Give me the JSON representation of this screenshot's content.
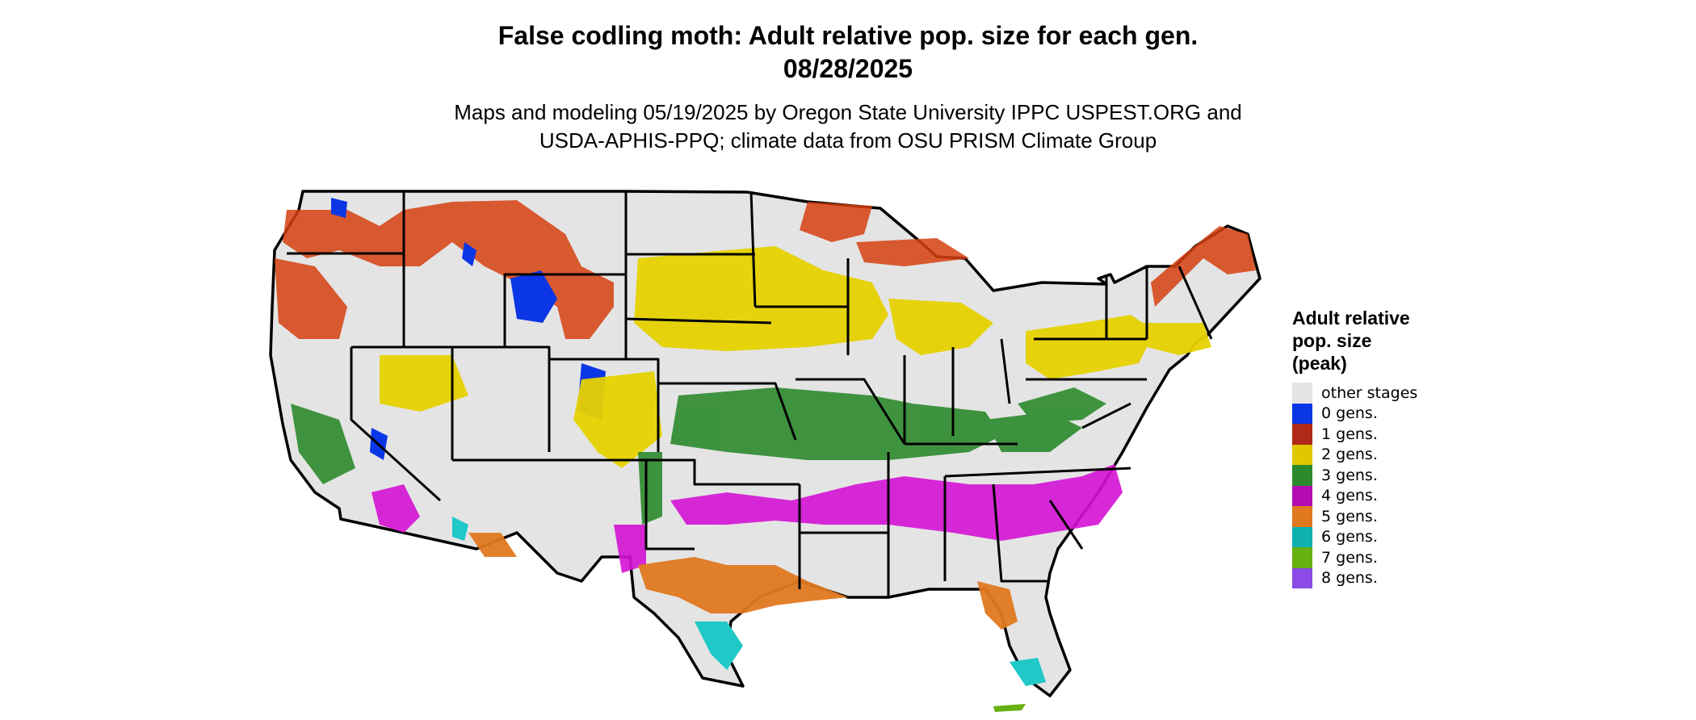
{
  "header": {
    "title_line1": "False codling moth: Adult relative pop. size for each gen.",
    "title_line2": "08/28/2025",
    "subtitle_line1": "Maps and modeling 05/19/2025 by Oregon State University IPPC USPEST.ORG and",
    "subtitle_line2": "USDA-APHIS-PPQ; climate data from OSU PRISM Climate Group"
  },
  "legend": {
    "title_line1": "Adult relative",
    "title_line2": "pop. size",
    "title_line3": "(peak)",
    "items": [
      {
        "label": "other stages",
        "color": "#e4e4e4"
      },
      {
        "label": "0 gens.",
        "color": "#0a36e6"
      },
      {
        "label": "1 gens.",
        "color": "#b02a17"
      },
      {
        "label": "2 gens.",
        "color": "#e0c800"
      },
      {
        "label": "3 gens.",
        "color": "#2c8a2c"
      },
      {
        "label": "4 gens.",
        "color": "#b20cb2"
      },
      {
        "label": "5 gens.",
        "color": "#e07820"
      },
      {
        "label": "6 gens.",
        "color": "#10b0b0"
      },
      {
        "label": "7 gens.",
        "color": "#66b010"
      },
      {
        "label": "8 gens.",
        "color": "#8c4ae6"
      }
    ]
  },
  "colors": {
    "background": "#ffffff",
    "land": "#e4e4e4",
    "state_border": "#000000",
    "gen0": "#0a36e6",
    "gen1": "#d64010",
    "gen2": "#e6d200",
    "gen3": "#2c8a2c",
    "gen4": "#d412d4",
    "gen5": "#e07820",
    "gen6": "#20c8c8",
    "gen7": "#66b010"
  }
}
